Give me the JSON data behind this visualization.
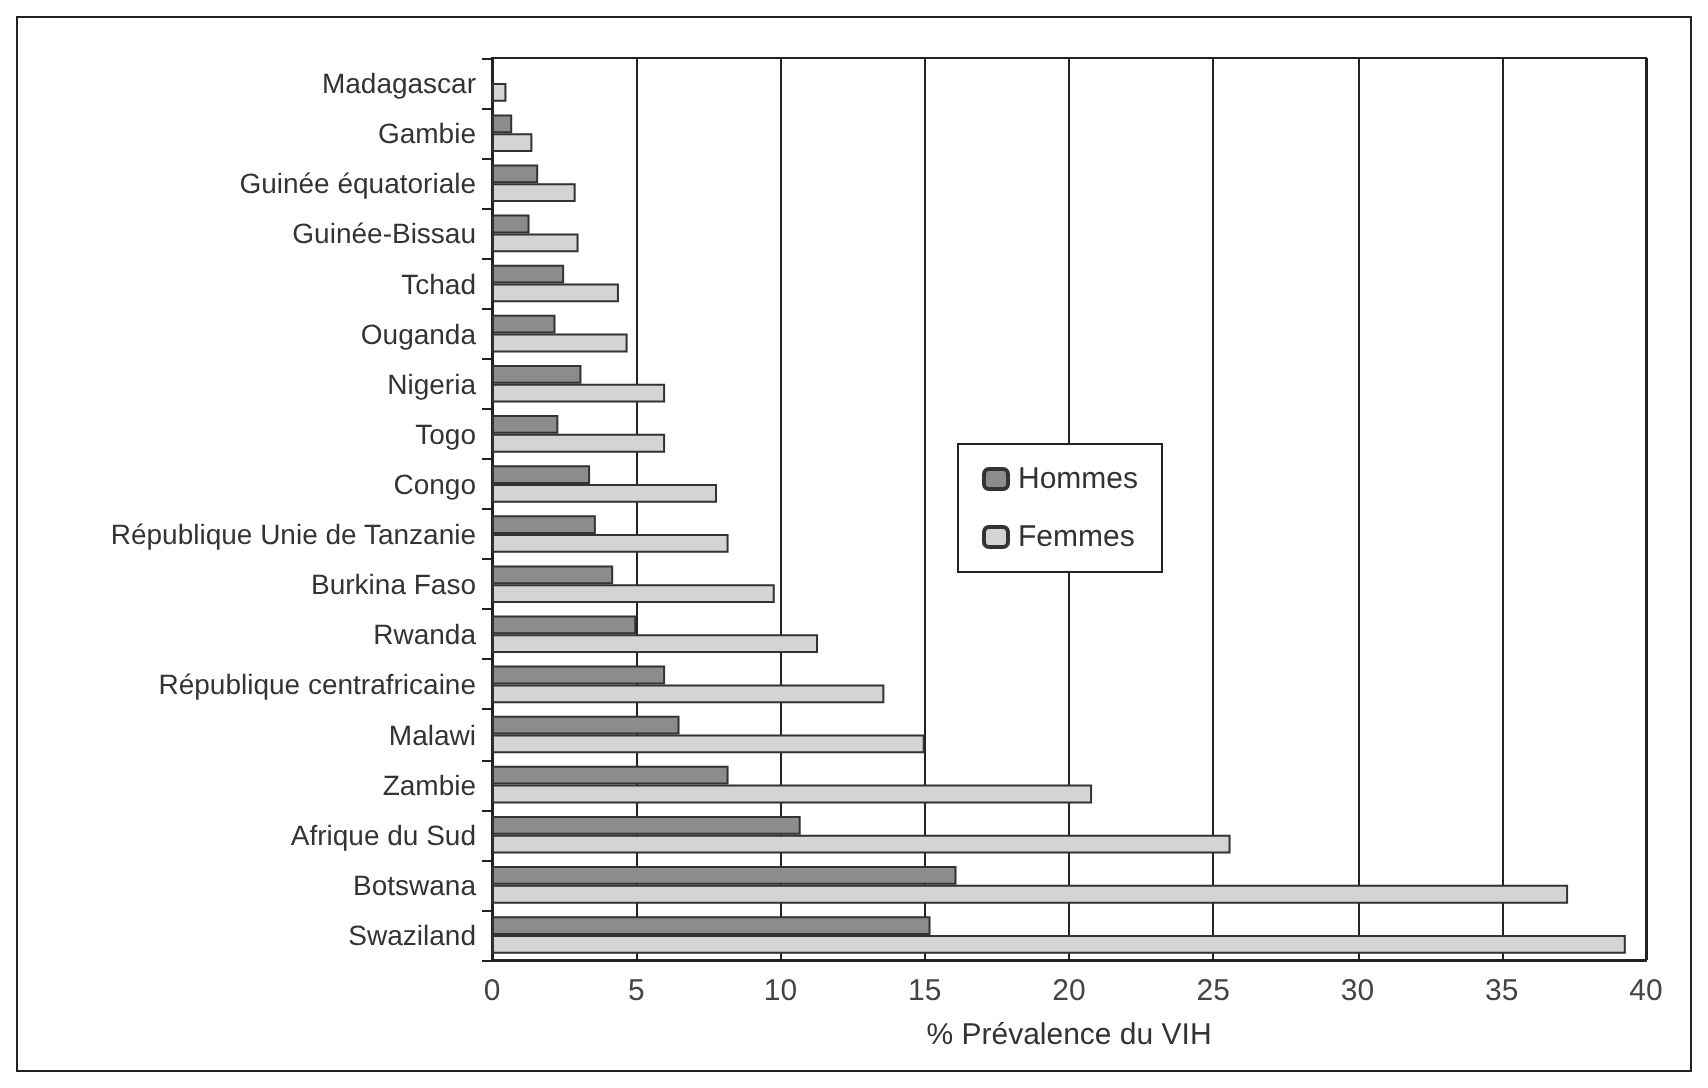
{
  "chart_data": {
    "type": "bar",
    "orientation": "horizontal",
    "xlabel": "% Prévalence du VIH",
    "categories": [
      "Madagascar",
      "Gambie",
      "Guinée équatoriale",
      "Guinée-Bissau",
      "Tchad",
      "Ouganda",
      "Nigeria",
      "Togo",
      "Congo",
      "République Unie de Tanzanie",
      "Burkina Faso",
      "Rwanda",
      "République centrafricaine",
      "Malawi",
      "Zambie",
      "Afrique du Sud",
      "Botswana",
      "Swaziland"
    ],
    "series": [
      {
        "name": "Hommes",
        "color": "#8c8c8c",
        "values": [
          null,
          0.7,
          1.6,
          1.3,
          2.5,
          2.2,
          3.1,
          2.3,
          3.4,
          3.6,
          4.2,
          5.0,
          6.0,
          6.5,
          8.2,
          10.7,
          16.1,
          15.2
        ]
      },
      {
        "name": "Femmes",
        "color": "#d4d4d4",
        "values": [
          0.5,
          1.4,
          2.9,
          3.0,
          4.4,
          4.7,
          6.0,
          6.0,
          7.8,
          8.2,
          9.8,
          11.3,
          13.6,
          15.0,
          20.8,
          25.6,
          37.3,
          39.3
        ]
      }
    ],
    "xlim": [
      0,
      40
    ],
    "xticks": [
      0,
      5,
      10,
      15,
      20,
      25,
      30,
      35,
      40
    ],
    "grid": "x",
    "legend": "center"
  }
}
